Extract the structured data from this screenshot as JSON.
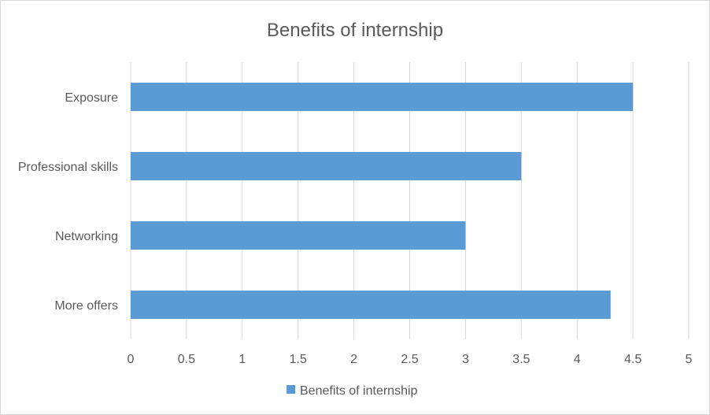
{
  "chart_data": {
    "type": "bar",
    "orientation": "horizontal",
    "title": "Benefits of internship",
    "categories": [
      "Exposure",
      "Professional skills",
      "Networking",
      "More offers"
    ],
    "series": [
      {
        "name": "Benefits of internship",
        "values": [
          4.5,
          3.5,
          3.0,
          4.3
        ],
        "color": "#5b9bd5"
      }
    ],
    "xlim": [
      0,
      5
    ],
    "x_ticks": [
      "0",
      "0.5",
      "1",
      "1.5",
      "2",
      "2.5",
      "3",
      "3.5",
      "4",
      "4.5",
      "5"
    ],
    "grid": true,
    "legend": "bottom",
    "gridline_color": "#d9d9d9",
    "text_color": "#595959"
  }
}
